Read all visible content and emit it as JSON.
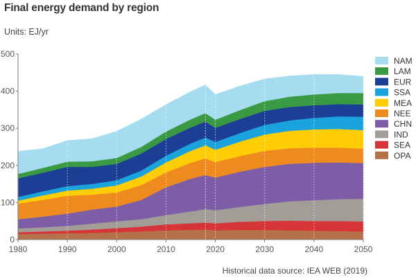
{
  "header": {
    "title": "Final energy demand by region",
    "units": "Units: EJ/yr",
    "source": "Historical data source: IEA WEB (2019)"
  },
  "chart_data": {
    "type": "area",
    "stacked": true,
    "title": "Final energy demand by region",
    "ylabel": "EJ/yr",
    "xlabel": "",
    "xlim": [
      1980,
      2050
    ],
    "ylim": [
      0,
      500
    ],
    "xticks": [
      1980,
      1990,
      2000,
      2010,
      2020,
      2030,
      2040,
      2050
    ],
    "yticks": [
      0,
      100,
      200,
      300,
      400,
      500
    ],
    "grid": "vertical dotted",
    "historical_end": 2018,
    "legend_position": "right",
    "x": [
      1980,
      1985,
      1990,
      1995,
      2000,
      2005,
      2010,
      2015,
      2018,
      2020,
      2025,
      2030,
      2035,
      2040,
      2045,
      2050
    ],
    "series": [
      {
        "name": "OPA",
        "color": "#b5714a",
        "values": [
          15,
          16,
          17,
          18,
          20,
          22,
          25,
          26,
          27,
          25,
          26,
          26,
          25,
          24,
          23,
          22
        ]
      },
      {
        "name": "SEA",
        "color": "#d63437",
        "values": [
          5,
          6,
          7,
          9,
          11,
          13,
          16,
          18,
          19,
          19,
          22,
          24,
          26,
          26,
          27,
          27
        ]
      },
      {
        "name": "IND",
        "color": "#a39d98",
        "values": [
          10,
          11,
          13,
          16,
          18,
          20,
          25,
          32,
          36,
          35,
          40,
          46,
          52,
          56,
          59,
          61
        ]
      },
      {
        "name": "CHN",
        "color": "#7d5ea6",
        "values": [
          25,
          29,
          33,
          38,
          40,
          52,
          75,
          88,
          92,
          88,
          95,
          100,
          101,
          101,
          99,
          96
        ]
      },
      {
        "name": "NEE",
        "color": "#ef8a1f",
        "values": [
          42,
          45,
          48,
          40,
          38,
          40,
          40,
          43,
          45,
          42,
          42,
          43,
          42,
          41,
          40,
          39
        ]
      },
      {
        "name": "MEA",
        "color": "#ffcd05",
        "values": [
          8,
          12,
          14,
          16,
          19,
          23,
          27,
          32,
          35,
          33,
          39,
          44,
          47,
          49,
          50,
          50
        ]
      },
      {
        "name": "SSA",
        "color": "#1aa3dc",
        "values": [
          10,
          11,
          12,
          13,
          14,
          16,
          18,
          20,
          21,
          21,
          23,
          26,
          28,
          31,
          34,
          36
        ]
      },
      {
        "name": "EUR",
        "color": "#1c3f95",
        "values": [
          50,
          50,
          52,
          46,
          44,
          46,
          45,
          43,
          43,
          38,
          38,
          38,
          36,
          34,
          33,
          33
        ]
      },
      {
        "name": "LAM",
        "color": "#3a9a44",
        "values": [
          12,
          13,
          14,
          15,
          16,
          18,
          20,
          22,
          23,
          22,
          24,
          26,
          28,
          29,
          30,
          31
        ]
      },
      {
        "name": "NAM",
        "color": "#a6dcf0",
        "values": [
          61,
          52,
          57,
          61,
          72,
          75,
          73,
          75,
          76,
          68,
          65,
          60,
          56,
          54,
          50,
          45
        ]
      }
    ]
  }
}
